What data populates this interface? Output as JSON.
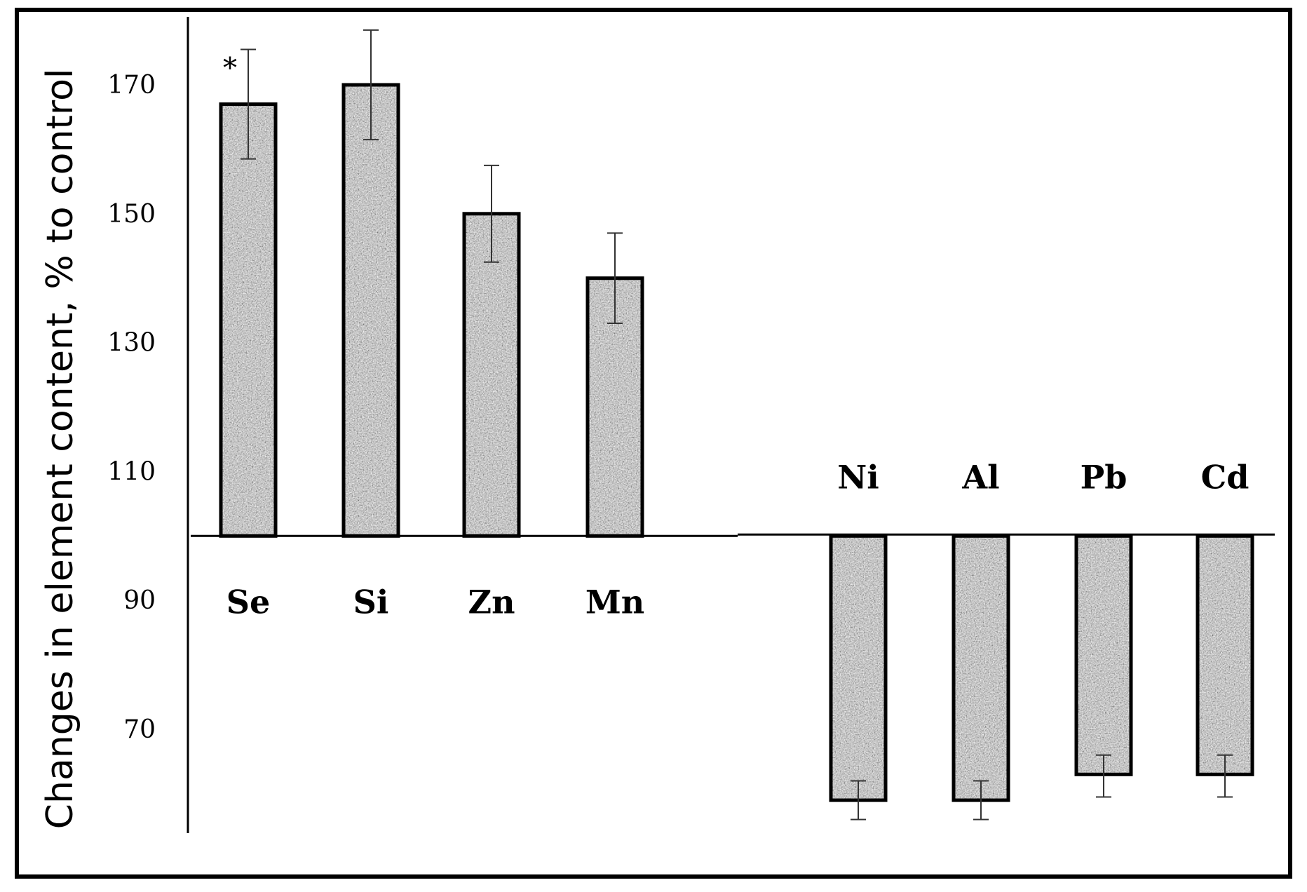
{
  "chart_data": {
    "type": "bar",
    "ylabel": "Changes in element content, % to control",
    "xlabel": "",
    "baseline": 100,
    "ylim": [
      52,
      180
    ],
    "yticks": [
      70,
      90,
      110,
      130,
      150,
      170
    ],
    "ytick_labels": [
      "70",
      "90",
      "110",
      "130",
      "150",
      "170"
    ],
    "grid": false,
    "categories": [
      "Se",
      "Si",
      "Zn",
      "Mn",
      "Ni",
      "Al",
      "Pb",
      "Cd"
    ],
    "values": [
      167,
      170,
      150,
      140,
      59,
      59,
      63,
      63
    ],
    "error_low": [
      158.5,
      161.5,
      142.5,
      133,
      56,
      56,
      59.5,
      59.5
    ],
    "error_high": [
      175.5,
      178.5,
      157.5,
      147,
      62,
      62,
      66,
      66
    ],
    "annotations": [
      {
        "category": "Se",
        "text": "*"
      }
    ],
    "bar_color": "#9a9a9a",
    "bar_edge_color": "#000000"
  }
}
